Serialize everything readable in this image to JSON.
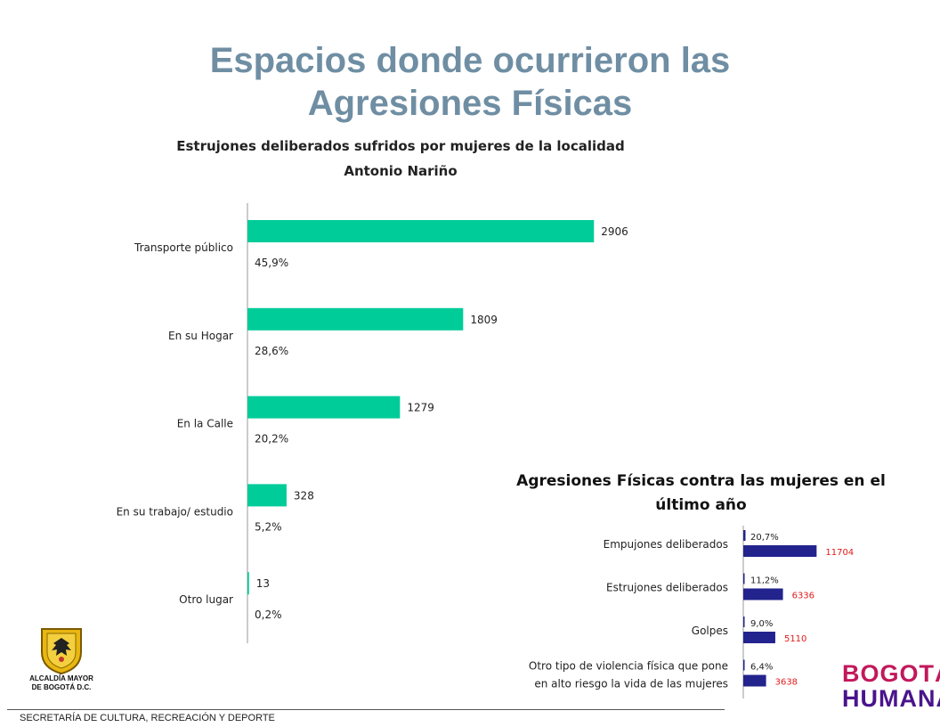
{
  "page": {
    "title_line1": "Espacios donde ocurrieron las",
    "title_line2": "Agresiones Físicas",
    "footer": "SECRETARÍA DE CULTURA, RECREACIÓN Y DEPORTE"
  },
  "logos": {
    "left_line1": "ALCALDÍA MAYOR",
    "left_line2": "DE BOGOTÁ D.C.",
    "right_line1": "BOGOTÁ",
    "right_line2": "HUMANA"
  },
  "colors": {
    "title": "#6f8ea3",
    "chart1_bar": "#00cc99",
    "chart2_bar": "#23238e",
    "chart2_value": "#e01b1b"
  },
  "chart_data": [
    {
      "type": "bar",
      "orientation": "horizontal",
      "title_line1": "Estrujones deliberados sufridos por mujeres de la localidad",
      "title_line2": "Antonio Nariño",
      "categories": [
        "Transporte público",
        "En su Hogar",
        "En la Calle",
        "En su trabajo/ estudio",
        "Otro lugar"
      ],
      "values": [
        2906,
        1809,
        1279,
        328,
        13
      ],
      "value_labels": [
        "2906",
        "1809",
        "1279",
        "328",
        "13"
      ],
      "percent_labels": [
        "45,9%",
        "28,6%",
        "20,2%",
        "5,2%",
        "0,2%"
      ],
      "xlim": [
        0,
        3240
      ],
      "grid": false,
      "legend": "none"
    },
    {
      "type": "bar",
      "orientation": "horizontal",
      "title_line1": "Agresiones Físicas contra las mujeres en el",
      "title_line2": "último año",
      "categories": [
        [
          "Empujones deliberados"
        ],
        [
          "Estrujones deliberados"
        ],
        [
          "Golpes"
        ],
        [
          "Otro tipo de violencia física que pone",
          "en alto riesgo la vida de las mujeres"
        ]
      ],
      "series": [
        {
          "values": [
            20.7,
            11.2,
            9.0,
            6.4
          ],
          "labels": [
            "20,7%",
            "11,2%",
            "9,0%",
            "6,4%"
          ]
        },
        {
          "values": [
            11704,
            6336,
            5110,
            3638
          ],
          "labels": [
            "11704",
            "6336",
            "5110",
            "3638"
          ]
        }
      ],
      "xlim": [
        0,
        13500
      ],
      "grid": false,
      "legend": "none"
    }
  ]
}
